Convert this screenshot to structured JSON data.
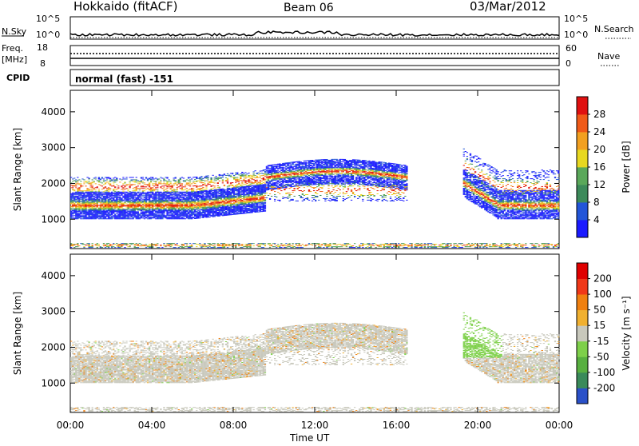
{
  "header": {
    "station": "Hokkaido (fitACF)",
    "beam": "Beam 06",
    "date": "03/Mar/2012"
  },
  "noise_panel": {
    "left_label": "N.Sky",
    "right_label": "N.Search",
    "ticks_left": [
      "10^5",
      "10^0"
    ],
    "ticks_right": [
      "10^5",
      "10^0"
    ]
  },
  "freq_panel": {
    "left_label_1": "Freq.",
    "left_label_2": "[MHz]",
    "right_label": "Nave",
    "ticks_left": [
      "18",
      "8"
    ],
    "ticks_right": [
      "60",
      "0"
    ]
  },
  "cpid": {
    "label": "CPID",
    "value": "normal (fast) -151"
  },
  "colorbars": {
    "power": {
      "label": "Power [dB]",
      "ticks": [
        "4",
        "8",
        "12",
        "16",
        "20",
        "24",
        "28"
      ],
      "colors": [
        "#1a1aff",
        "#2255d8",
        "#3c8a5a",
        "#5aa85a",
        "#e8d820",
        "#f2a020",
        "#f05a18",
        "#e01010"
      ]
    },
    "velocity": {
      "label": "Velocity [m s⁻¹]",
      "ticks": [
        "200",
        "100",
        "50",
        "15",
        "-15",
        "-50",
        "-100",
        "-200"
      ],
      "colors": [
        "#2a50c8",
        "#3a8a5a",
        "#58b040",
        "#7ed04a",
        "#c8c8bc",
        "#f0b030",
        "#f08010",
        "#f03818",
        "#e00000"
      ]
    }
  },
  "chart_data": {
    "type": "heatmap",
    "x_ticks": [
      "00:00",
      "04:00",
      "08:00",
      "12:00",
      "16:00",
      "20:00",
      "00:00"
    ],
    "xlabel": "Time UT",
    "ylabel": "Slant Range [km]",
    "y_ticks": [
      "1000",
      "2000",
      "3000",
      "4000"
    ],
    "xlim_hours": [
      0,
      24
    ],
    "ylim_km": [
      180,
      4600
    ],
    "panels": [
      "power",
      "velocity"
    ]
  }
}
